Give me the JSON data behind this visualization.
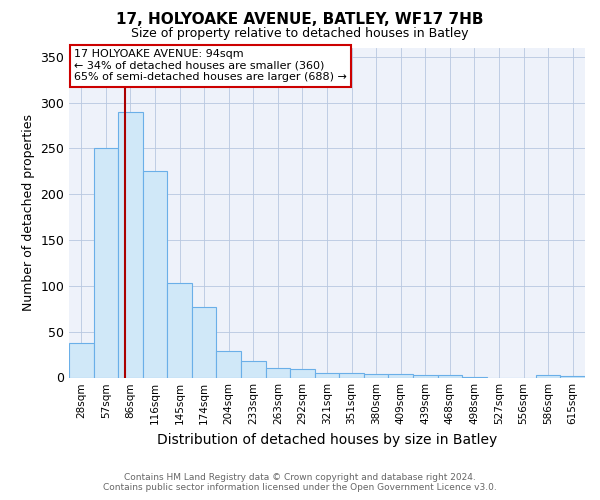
{
  "title1": "17, HOLYOAKE AVENUE, BATLEY, WF17 7HB",
  "title2": "Size of property relative to detached houses in Batley",
  "xlabel": "Distribution of detached houses by size in Batley",
  "ylabel": "Number of detached properties",
  "bin_labels": [
    "28sqm",
    "57sqm",
    "86sqm",
    "116sqm",
    "145sqm",
    "174sqm",
    "204sqm",
    "233sqm",
    "263sqm",
    "292sqm",
    "321sqm",
    "351sqm",
    "380sqm",
    "409sqm",
    "439sqm",
    "468sqm",
    "498sqm",
    "527sqm",
    "556sqm",
    "586sqm",
    "615sqm"
  ],
  "bar_heights": [
    38,
    250,
    290,
    225,
    103,
    77,
    29,
    18,
    10,
    9,
    5,
    5,
    4,
    4,
    3,
    3,
    1,
    0,
    0,
    3,
    2
  ],
  "bar_color": "#d0e8f8",
  "bar_edge_color": "#6aafe8",
  "vline_color": "#aa0000",
  "annotation_lines": [
    "17 HOLYOAKE AVENUE: 94sqm",
    "← 34% of detached houses are smaller (360)",
    "65% of semi-detached houses are larger (688) →"
  ],
  "annotation_box_color": "#ffffff",
  "annotation_box_edge_color": "#cc0000",
  "ylim": [
    0,
    360
  ],
  "yticks": [
    0,
    50,
    100,
    150,
    200,
    250,
    300,
    350
  ],
  "footer_line1": "Contains HM Land Registry data © Crown copyright and database right 2024.",
  "footer_line2": "Contains public sector information licensed under the Open Government Licence v3.0.",
  "plot_background": "#eef2fa"
}
